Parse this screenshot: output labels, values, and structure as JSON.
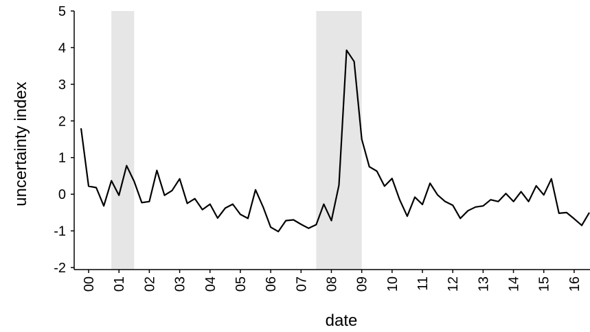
{
  "chart_data": {
    "type": "line",
    "x_label": "date",
    "y_label": "uncertainty index",
    "categories": [
      null,
      "00",
      null,
      null,
      null,
      "01",
      null,
      null,
      null,
      "02",
      null,
      null,
      null,
      "03",
      null,
      null,
      null,
      "04",
      null,
      null,
      null,
      "05",
      null,
      null,
      null,
      "06",
      null,
      null,
      null,
      "07",
      null,
      null,
      null,
      "08",
      null,
      null,
      null,
      "09",
      null,
      null,
      null,
      "10",
      null,
      null,
      null,
      "11",
      null,
      null,
      null,
      "12",
      null,
      null,
      null,
      "13",
      null,
      null,
      null,
      "14",
      null,
      null,
      null,
      "15",
      null,
      null,
      null,
      "16",
      null,
      null
    ],
    "series": [
      {
        "color": "#000000",
        "values": [
          1.8,
          0.22,
          0.18,
          -0.32,
          0.37,
          -0.03,
          0.78,
          0.35,
          -0.23,
          -0.2,
          0.65,
          -0.03,
          0.1,
          0.42,
          -0.25,
          -0.12,
          -0.42,
          -0.27,
          -0.65,
          -0.38,
          -0.27,
          -0.55,
          -0.66,
          0.12,
          -0.35,
          -0.9,
          -1.02,
          -0.72,
          -0.7,
          -0.82,
          -0.93,
          -0.83,
          -0.27,
          -0.72,
          0.25,
          3.93,
          3.62,
          1.5,
          0.75,
          0.63,
          0.22,
          0.43,
          -0.15,
          -0.6,
          -0.08,
          -0.28,
          0.3,
          -0.02,
          -0.2,
          -0.3,
          -0.66,
          -0.45,
          -0.35,
          -0.32,
          -0.15,
          -0.2,
          0.02,
          -0.2,
          0.07,
          -0.2,
          0.23,
          -0.02,
          0.42,
          -0.52,
          -0.5,
          -0.67,
          -0.85,
          -0.5
        ]
      }
    ],
    "shaded_spans": [
      {
        "from": 4,
        "to": 7,
        "color": "#e6e6e6"
      },
      {
        "from": 31,
        "to": 37,
        "color": "#e6e6e6"
      }
    ],
    "ylim": [
      -2,
      5
    ],
    "yticks": [
      -2,
      -1,
      0,
      1,
      2,
      3,
      4,
      5
    ]
  }
}
